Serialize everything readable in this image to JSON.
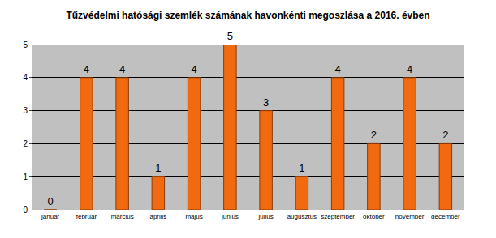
{
  "chart_data": {
    "type": "bar",
    "title": "Tűzvédelmi hatósági szemlék számának havonkénti megoszlása a 2016. évben",
    "categories": [
      "január",
      "február",
      "március",
      "április",
      "május",
      "június",
      "július",
      "augusztus",
      "szeptember",
      "október",
      "november",
      "december"
    ],
    "values": [
      0,
      4,
      4,
      1,
      4,
      5,
      3,
      1,
      4,
      2,
      4,
      2
    ],
    "color": "#f26a10",
    "ylim": [
      0,
      5
    ],
    "yticks": [
      0,
      1,
      2,
      3,
      4,
      5
    ],
    "grid": true,
    "data_labels": true
  }
}
